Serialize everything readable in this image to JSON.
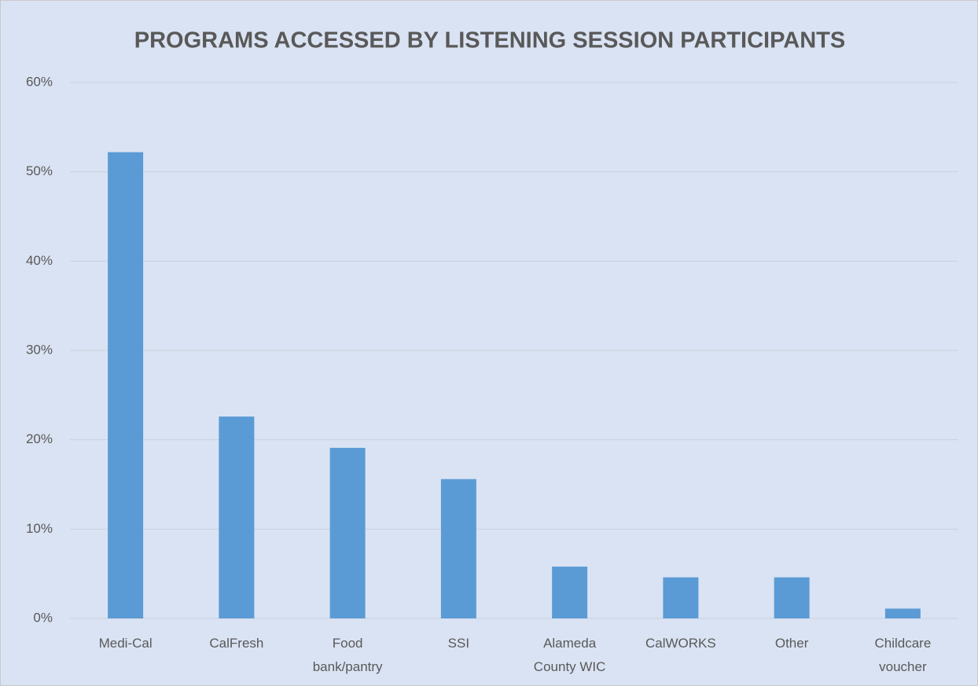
{
  "chart_data": {
    "type": "bar",
    "title": "PROGRAMS ACCESSED BY LISTENING SESSION PARTICIPANTS",
    "categories": [
      "Medi-Cal",
      "CalFresh",
      "Food bank/pantry",
      "SSI",
      "Alameda County WIC",
      "CalWORKS",
      "Other",
      "Childcare voucher"
    ],
    "values": [
      52.2,
      22.6,
      19.1,
      15.6,
      5.8,
      4.6,
      4.6,
      1.1
    ],
    "color": "#5b9bd5",
    "ylim": [
      0,
      60
    ],
    "yticks": [
      {
        "value": 0,
        "label": "0%"
      },
      {
        "value": 10,
        "label": "10%"
      },
      {
        "value": 20,
        "label": "20%"
      },
      {
        "value": 30,
        "label": "30%"
      },
      {
        "value": 40,
        "label": "40%"
      },
      {
        "value": 50,
        "label": "50%"
      },
      {
        "value": 60,
        "label": "60%"
      }
    ],
    "grid": true
  }
}
